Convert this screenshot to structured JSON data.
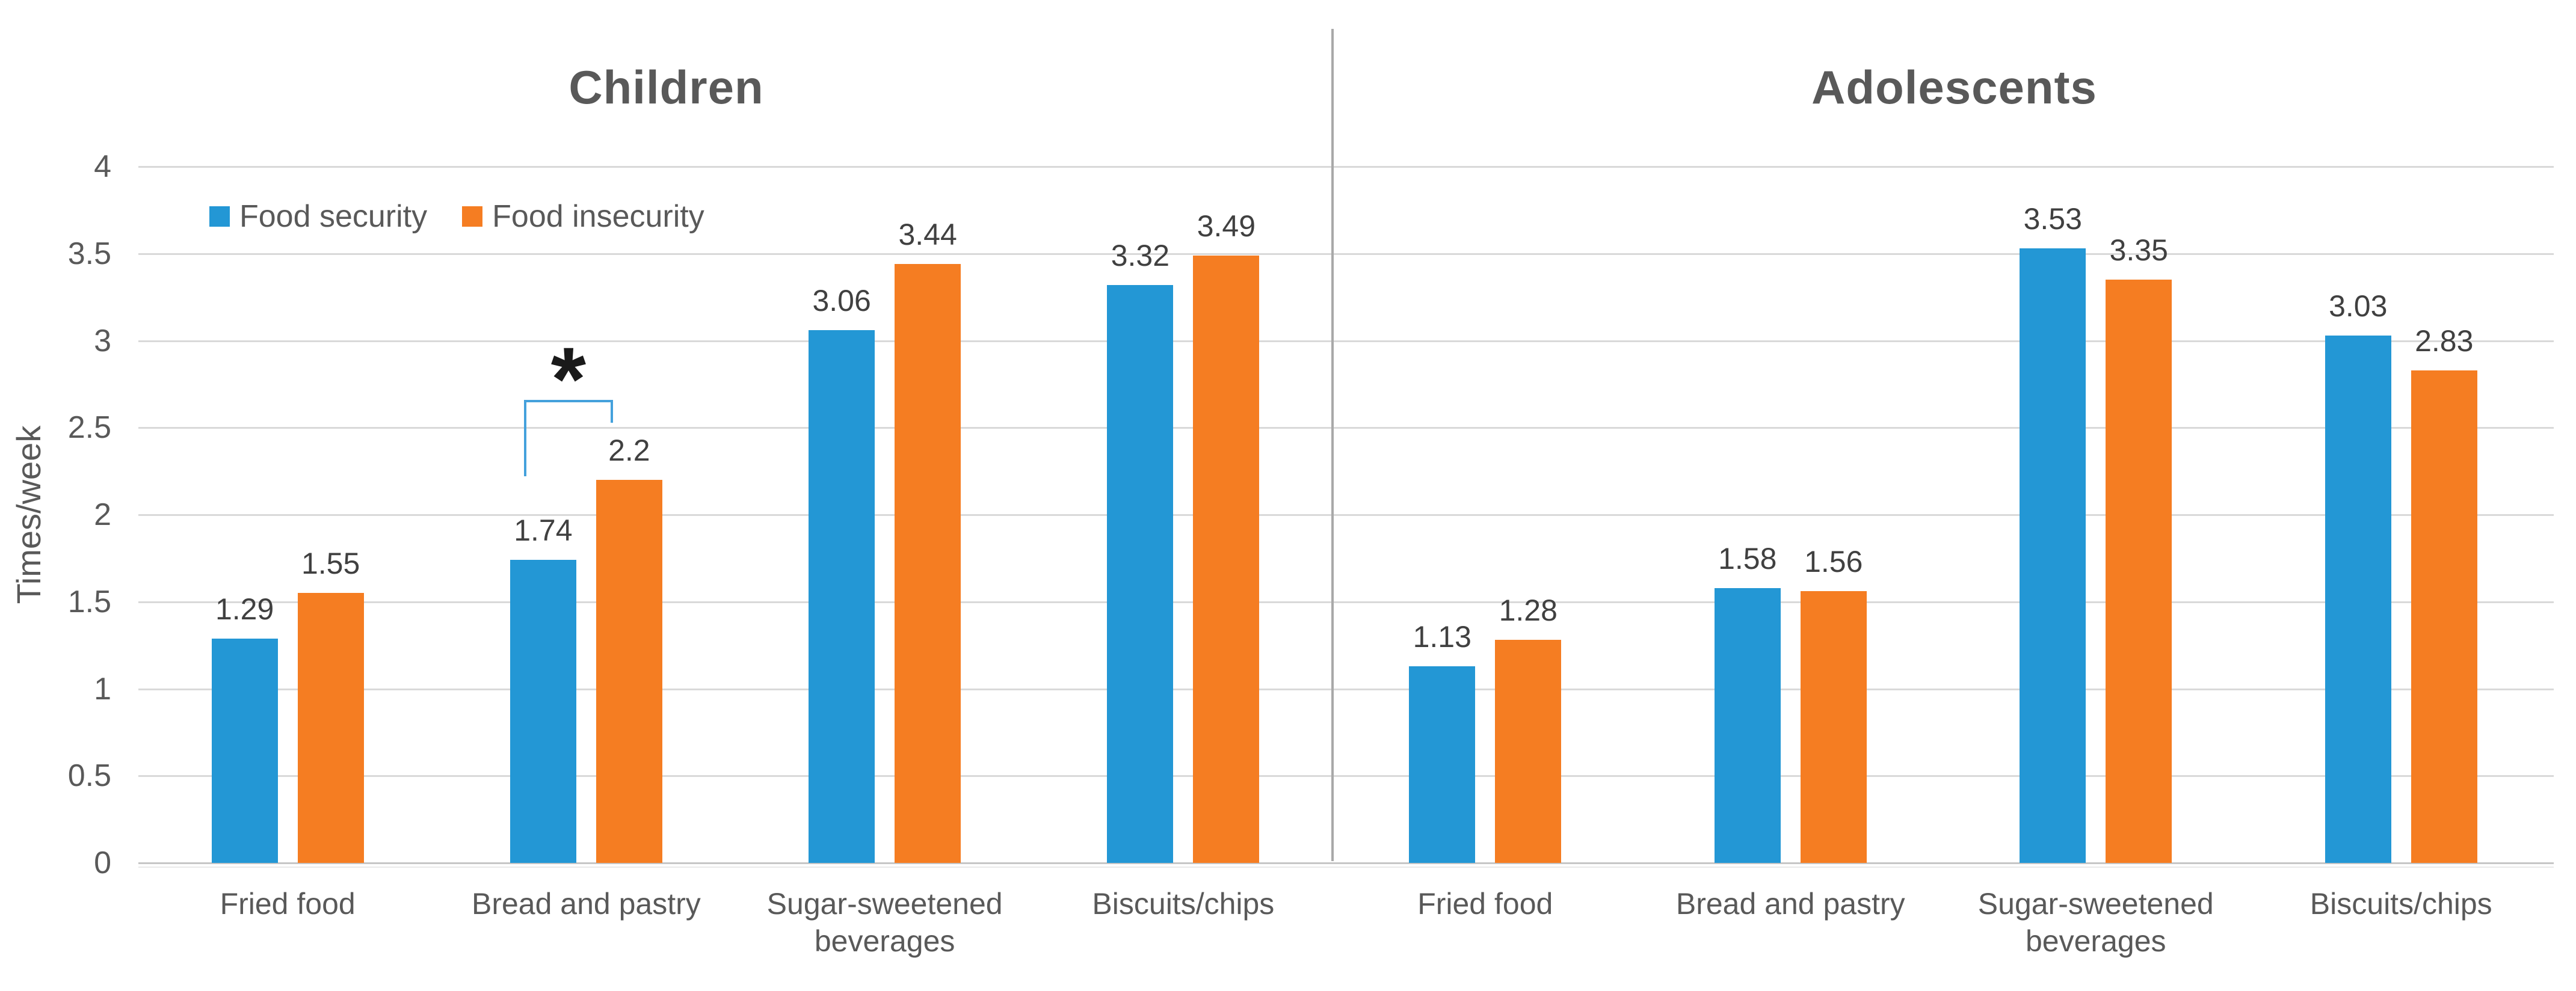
{
  "chart_data": {
    "type": "bar",
    "ylabel": "Times/week",
    "ylim": [
      0,
      4
    ],
    "ytick_step": 0.5,
    "yticks": [
      "0",
      "0.5",
      "1",
      "1.5",
      "2",
      "2.5",
      "3",
      "3.5",
      "4"
    ],
    "grid": true,
    "legend": {
      "position": "top-left",
      "entries": [
        {
          "label": "Food security",
          "color": "#2397d5"
        },
        {
          "label": "Food insecurity",
          "color": "#f57d22"
        }
      ]
    },
    "categories": [
      "Fried food",
      "Bread and pastry",
      "Sugar-sweetened beverages",
      "Biscuits/chips"
    ],
    "panels": [
      {
        "title": "Children",
        "series": [
          {
            "name": "Food security",
            "values": [
              1.29,
              1.74,
              3.06,
              3.32
            ]
          },
          {
            "name": "Food insecurity",
            "values": [
              1.55,
              2.2,
              3.44,
              3.49
            ]
          }
        ],
        "annotation": {
          "symbol": "*",
          "category": "Bread and pastry",
          "between": [
            "Food security",
            "Food insecurity"
          ]
        }
      },
      {
        "title": "Adolescents",
        "series": [
          {
            "name": "Food security",
            "values": [
              1.13,
              1.58,
              3.53,
              3.03
            ]
          },
          {
            "name": "Food insecurity",
            "values": [
              1.28,
              1.56,
              3.35,
              2.83
            ]
          }
        ]
      }
    ],
    "colors": {
      "food_security": "#2397d5",
      "food_insecurity": "#f57d22",
      "gridline": "#d9d9d9",
      "divider": "#a9a9a9",
      "text": "#595959",
      "bracket": "#44a1dc"
    }
  }
}
